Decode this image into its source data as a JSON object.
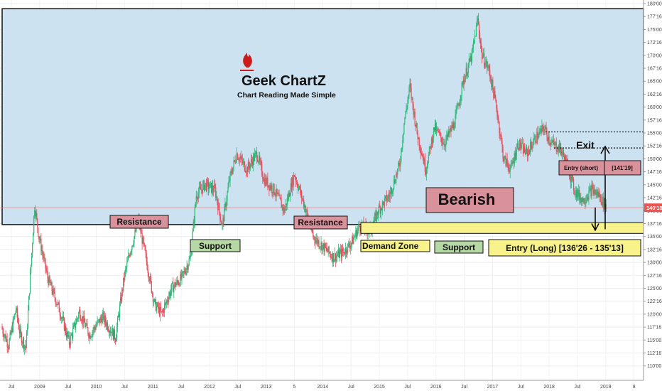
{
  "chart_data": {
    "type": "candlestick",
    "title": "",
    "xlabel": "",
    "ylabel": "",
    "ylim": [
      109,
      180
    ],
    "x_ticks": [
      "Jul",
      "2009",
      "Jul",
      "2010",
      "Jul",
      "2011",
      "Jul",
      "2012",
      "Jul",
      "2013",
      "5",
      "2014",
      "Jul",
      "2015",
      "Jul",
      "2016",
      "Jul",
      "2017",
      "Jul",
      "2018",
      "Jul",
      "2019",
      "8"
    ],
    "y_ticks": [
      "110'00",
      "112'16",
      "115'00",
      "117'16",
      "120'00",
      "122'16",
      "125'00",
      "127'16",
      "130'00",
      "132'16",
      "135'00",
      "137'16",
      "140'00",
      "142'16",
      "145'00",
      "147'16",
      "150'00",
      "152'16",
      "155'00",
      "157'16",
      "160'00",
      "162'16",
      "165'00",
      "167'16",
      "170'00",
      "172'16",
      "175'00",
      "177'16",
      "180'00"
    ],
    "current_price": 140.56,
    "current_price_label": "140'18",
    "price_path": [
      {
        "week": 0,
        "close": 117.5
      },
      {
        "week": 10,
        "close": 114.0
      },
      {
        "week": 20,
        "close": 121.0
      },
      {
        "week": 26,
        "close": 116.0
      },
      {
        "week": 34,
        "close": 113.5
      },
      {
        "week": 46,
        "close": 141.0
      },
      {
        "week": 52,
        "close": 135.0
      },
      {
        "week": 64,
        "close": 127.0
      },
      {
        "week": 80,
        "close": 121.0
      },
      {
        "week": 94,
        "close": 114.5
      },
      {
        "week": 108,
        "close": 120.5
      },
      {
        "week": 122,
        "close": 116.0
      },
      {
        "week": 140,
        "close": 119.5
      },
      {
        "week": 158,
        "close": 115.5
      },
      {
        "week": 170,
        "close": 127.0
      },
      {
        "week": 178,
        "close": 132.0
      },
      {
        "week": 190,
        "close": 138.0
      },
      {
        "week": 200,
        "close": 131.0
      },
      {
        "week": 212,
        "close": 122.0
      },
      {
        "week": 222,
        "close": 120.0
      },
      {
        "week": 236,
        "close": 125.0
      },
      {
        "week": 250,
        "close": 127.0
      },
      {
        "week": 262,
        "close": 131.0
      },
      {
        "week": 270,
        "close": 143.0
      },
      {
        "week": 282,
        "close": 145.0
      },
      {
        "week": 296,
        "close": 144.0
      },
      {
        "week": 306,
        "close": 137.0
      },
      {
        "week": 316,
        "close": 146.0
      },
      {
        "week": 326,
        "close": 151.0
      },
      {
        "week": 340,
        "close": 148.0
      },
      {
        "week": 354,
        "close": 151.0
      },
      {
        "week": 364,
        "close": 146.0
      },
      {
        "week": 378,
        "close": 144.0
      },
      {
        "week": 392,
        "close": 140.0
      },
      {
        "week": 406,
        "close": 147.0
      },
      {
        "week": 420,
        "close": 141.0
      },
      {
        "week": 432,
        "close": 135.0
      },
      {
        "week": 446,
        "close": 133.0
      },
      {
        "week": 460,
        "close": 131.0
      },
      {
        "week": 474,
        "close": 132.0
      },
      {
        "week": 486,
        "close": 134.0
      },
      {
        "week": 496,
        "close": 137.0
      },
      {
        "week": 512,
        "close": 136.0
      },
      {
        "week": 522,
        "close": 140.0
      },
      {
        "week": 538,
        "close": 143.0
      },
      {
        "week": 552,
        "close": 149.0
      },
      {
        "week": 558,
        "close": 157.0
      },
      {
        "week": 566,
        "close": 164.0
      },
      {
        "week": 576,
        "close": 155.0
      },
      {
        "week": 588,
        "close": 148.0
      },
      {
        "week": 600,
        "close": 156.0
      },
      {
        "week": 614,
        "close": 153.0
      },
      {
        "week": 628,
        "close": 157.0
      },
      {
        "week": 640,
        "close": 165.0
      },
      {
        "week": 652,
        "close": 170.0
      },
      {
        "week": 660,
        "close": 177.0
      },
      {
        "week": 666,
        "close": 170.0
      },
      {
        "week": 676,
        "close": 167.0
      },
      {
        "week": 686,
        "close": 160.0
      },
      {
        "week": 696,
        "close": 150.0
      },
      {
        "week": 706,
        "close": 148.0
      },
      {
        "week": 716,
        "close": 153.0
      },
      {
        "week": 728,
        "close": 151.0
      },
      {
        "week": 740,
        "close": 154.0
      },
      {
        "week": 752,
        "close": 156.0
      },
      {
        "week": 762,
        "close": 153.0
      },
      {
        "week": 774,
        "close": 152.0
      },
      {
        "week": 784,
        "close": 149.0
      },
      {
        "week": 794,
        "close": 144.0
      },
      {
        "week": 806,
        "close": 142.0
      },
      {
        "week": 818,
        "close": 144.0
      },
      {
        "week": 828,
        "close": 143.0
      },
      {
        "week": 838,
        "close": 140.6
      }
    ],
    "colors": {
      "up": "#2eb87a",
      "down": "#e74c5b",
      "zone_fill": "#c8dff0",
      "zone_border": "#111111",
      "price_line": "#e07070"
    }
  },
  "branding": {
    "logo_name": "Geek ChartZ",
    "tagline": "Chart Reading Made Simple",
    "logo_icon": "flame-icon",
    "logo_color": "#cc1b1b"
  },
  "annotations": {
    "resistance_1": "Resistance",
    "resistance_2": "Resistance",
    "support_1": "Support",
    "support_2": "Support",
    "demand_zone": "Demand Zone",
    "bearish": "Bearish",
    "exit": "Exit",
    "entry_short": "Entry (short)",
    "entry_short_price": "[141'19]",
    "entry_long": "Entry (Long) [136'26 - 135'13]"
  }
}
